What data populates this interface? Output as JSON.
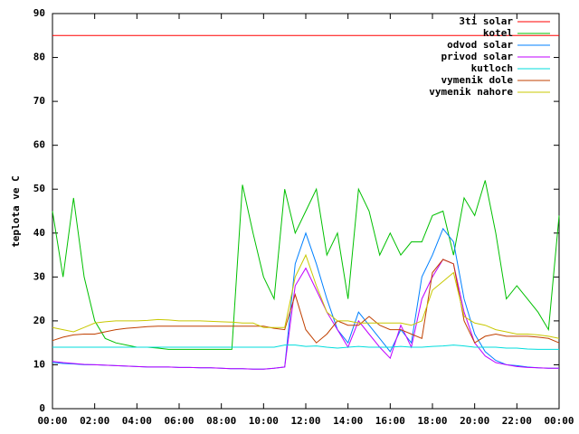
{
  "chart_data": {
    "type": "line",
    "ylabel": "teplota ve C",
    "xlim": [
      0,
      24
    ],
    "ylim": [
      0,
      90
    ],
    "yticks": [
      0,
      10,
      20,
      30,
      40,
      50,
      60,
      70,
      80,
      90
    ],
    "xticks": [
      {
        "value": 0,
        "label": "00:00"
      },
      {
        "value": 2,
        "label": "02:00"
      },
      {
        "value": 4,
        "label": "04:00"
      },
      {
        "value": 6,
        "label": "06:00"
      },
      {
        "value": 8,
        "label": "08:00"
      },
      {
        "value": 10,
        "label": "10:00"
      },
      {
        "value": 12,
        "label": "12:00"
      },
      {
        "value": 14,
        "label": "14:00"
      },
      {
        "value": 16,
        "label": "16:00"
      },
      {
        "value": 18,
        "label": "18:00"
      },
      {
        "value": 20,
        "label": "20:00"
      },
      {
        "value": 22,
        "label": "22:00"
      },
      {
        "value": 24,
        "label": "00:00"
      }
    ],
    "grid": false,
    "legend": "top-right",
    "x": [
      0,
      0.5,
      1,
      1.5,
      2,
      2.5,
      3,
      3.5,
      4,
      4.5,
      5,
      5.5,
      6,
      6.5,
      7,
      7.5,
      8,
      8.5,
      9,
      9.5,
      10,
      10.5,
      11,
      11.5,
      12,
      12.5,
      13,
      13.5,
      14,
      14.5,
      15,
      15.5,
      16,
      16.5,
      17,
      17.5,
      18,
      18.5,
      19,
      19.5,
      20,
      20.5,
      21,
      21.5,
      22,
      22.5,
      23,
      23.5,
      24
    ],
    "series": [
      {
        "name": "3ti solar",
        "color": "#ff0000",
        "values": [
          85,
          85,
          85,
          85,
          85,
          85,
          85,
          85,
          85,
          85,
          85,
          85,
          85,
          85,
          85,
          85,
          85,
          85,
          85,
          85,
          85,
          85,
          85,
          85,
          85,
          85,
          85,
          85,
          85,
          85,
          85,
          85,
          85,
          85,
          85,
          85,
          85,
          85,
          85,
          85,
          85,
          85,
          85,
          85,
          85,
          85,
          85,
          85,
          85
        ]
      },
      {
        "name": "kotel",
        "color": "#00c000",
        "values": [
          45,
          30,
          48,
          30,
          20,
          16,
          15,
          14.5,
          14,
          14,
          13.8,
          13.5,
          13.5,
          13.5,
          13.5,
          13.5,
          13.5,
          13.5,
          51,
          40,
          30,
          25,
          50,
          40,
          45,
          50,
          35,
          40,
          25,
          50,
          45,
          35,
          40,
          35,
          38,
          38,
          44,
          45,
          35,
          48,
          44,
          52,
          40,
          25,
          28,
          25,
          22,
          18,
          44
        ]
      },
      {
        "name": "odvod solar",
        "color": "#0080ff",
        "values": [
          10.5,
          10.3,
          10.2,
          10,
          10,
          9.9,
          9.8,
          9.7,
          9.6,
          9.5,
          9.5,
          9.5,
          9.4,
          9.4,
          9.3,
          9.3,
          9.2,
          9.1,
          9.1,
          9,
          9,
          9.2,
          9.5,
          33,
          40,
          33,
          25,
          18,
          15,
          22,
          19,
          16,
          13,
          18,
          15,
          30,
          35,
          41,
          38,
          25,
          17,
          13,
          11,
          10,
          9.8,
          9.5,
          9.3,
          9.2,
          9.2
        ]
      },
      {
        "name": "privod solar",
        "color": "#c000ff",
        "values": [
          10.8,
          10.5,
          10.3,
          10.1,
          10,
          9.9,
          9.8,
          9.7,
          9.6,
          9.5,
          9.5,
          9.5,
          9.4,
          9.4,
          9.3,
          9.3,
          9.2,
          9.1,
          9.1,
          9,
          9,
          9.2,
          9.5,
          28,
          32,
          27,
          22,
          18,
          14,
          20,
          17,
          14,
          11.5,
          19,
          14,
          25,
          30,
          34,
          33,
          22,
          15,
          12,
          10.5,
          10,
          9.6,
          9.4,
          9.3,
          9.2,
          9.2
        ]
      },
      {
        "name": "kutloch",
        "color": "#00dddd",
        "values": [
          14,
          14,
          14,
          14,
          14,
          14,
          14,
          14,
          14,
          14,
          14,
          14,
          14,
          14,
          14,
          14,
          14,
          14,
          14,
          14,
          14,
          14,
          14.5,
          14.5,
          14.2,
          14.3,
          14,
          13.8,
          14,
          14.2,
          14,
          14,
          14,
          14.2,
          14,
          14,
          14.2,
          14.3,
          14.5,
          14.3,
          14,
          14,
          14,
          13.8,
          13.8,
          13.6,
          13.5,
          13.5,
          13.5
        ]
      },
      {
        "name": "vymenik dole",
        "color": "#c04000",
        "values": [
          15.5,
          16.3,
          16.8,
          17,
          17,
          17.5,
          18,
          18.3,
          18.5,
          18.7,
          18.8,
          18.8,
          18.8,
          18.8,
          18.8,
          18.8,
          18.8,
          18.8,
          18.8,
          18.8,
          18.8,
          18.3,
          18,
          26,
          18,
          15,
          17,
          20,
          19,
          19,
          21,
          19,
          18,
          18,
          17,
          16,
          31,
          34,
          33,
          20,
          15,
          16.5,
          17,
          16.5,
          16.5,
          16.5,
          16.3,
          16,
          15
        ]
      },
      {
        "name": "vymenik nahore",
        "color": "#c8c800",
        "values": [
          18.5,
          18,
          17.5,
          18.5,
          19.5,
          19.8,
          20,
          20,
          20,
          20.1,
          20.3,
          20.2,
          20,
          20,
          20,
          19.9,
          19.8,
          19.7,
          19.5,
          19.5,
          18.5,
          18.5,
          18.5,
          30,
          35,
          28,
          22,
          20,
          20,
          19.5,
          19.5,
          19.5,
          19.5,
          19.5,
          19,
          20,
          27,
          29,
          31,
          21,
          19.5,
          19,
          18,
          17.5,
          17,
          17,
          16.8,
          16.5,
          16
        ]
      }
    ]
  }
}
